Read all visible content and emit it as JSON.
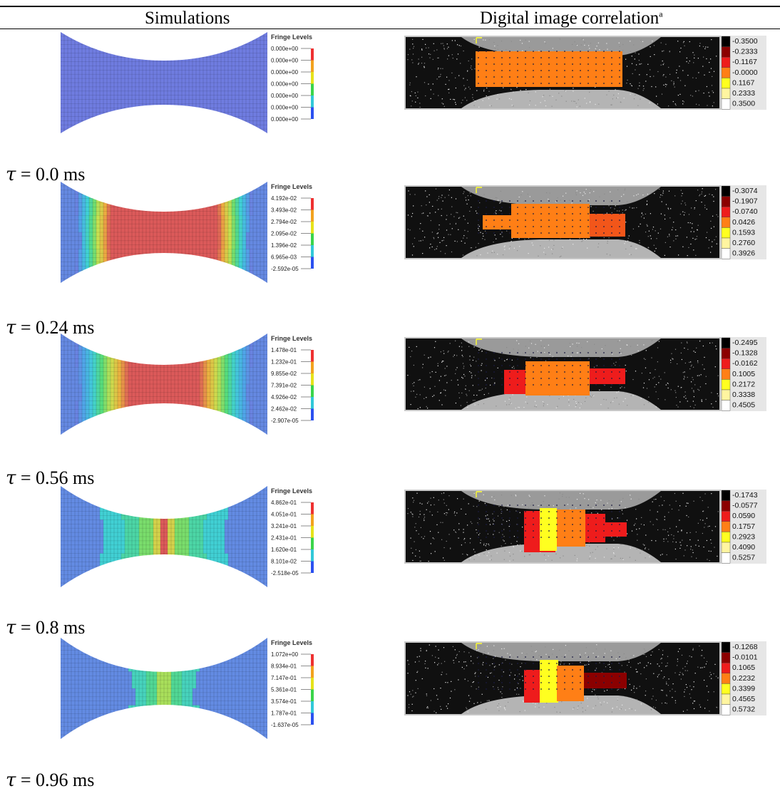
{
  "headers": {
    "simulations": "Simulations",
    "dic": "Digital image correlation",
    "dic_sup": "a"
  },
  "fringe_title": "Fringe Levels",
  "tau_symbol": "τ",
  "rows": [
    {
      "tau": "= 0.0 ms",
      "sim_levels": [
        "0.000e+00",
        "0.000e+00",
        "0.000e+00",
        "0.000e+00",
        "0.000e+00",
        "0.000e+00",
        "0.000e+00"
      ],
      "dic_levels": [
        "-0.3500",
        "-0.2333",
        "-0.1167",
        "-0.0000",
        "0.1167",
        "0.2333",
        "0.3500"
      ]
    },
    {
      "tau": "= 0.24 ms",
      "sim_levels": [
        "4.192e-02",
        "3.493e-02",
        "2.794e-02",
        "2.095e-02",
        "1.396e-02",
        "6.965e-03",
        "-2.592e-05"
      ],
      "dic_levels": [
        "-0.3074",
        "-0.1907",
        "-0.0740",
        "0.0426",
        "0.1593",
        "0.2760",
        "0.3926"
      ]
    },
    {
      "tau": "= 0.56 ms",
      "sim_levels": [
        "1.478e-01",
        "1.232e-01",
        "9.855e-02",
        "7.391e-02",
        "4.926e-02",
        "2.462e-02",
        "-2.907e-05"
      ],
      "dic_levels": [
        "-0.2495",
        "-0.1328",
        "-0.0162",
        "0.1005",
        "0.2172",
        "0.3338",
        "0.4505"
      ]
    },
    {
      "tau": "= 0.8 ms",
      "sim_levels": [
        "4.862e-01",
        "4.051e-01",
        "3.241e-01",
        "2.431e-01",
        "1.620e-01",
        "8.101e-02",
        "-2.518e-05"
      ],
      "dic_levels": [
        "-0.1743",
        "-0.0577",
        "0.0590",
        "0.1757",
        "0.2923",
        "0.4090",
        "0.5257"
      ]
    },
    {
      "tau": "= 0.96 ms",
      "sim_levels": [
        "1.072e+00",
        "8.934e-01",
        "7.147e-01",
        "5.361e-01",
        "3.574e-01",
        "1.787e-01",
        "-1.637e-05"
      ],
      "dic_levels": [
        "-0.1268",
        "-0.0101",
        "0.1065",
        "0.2232",
        "0.3399",
        "0.4565",
        "0.5732"
      ]
    }
  ],
  "colors": {
    "fringe_scale": [
      "#ee3030",
      "#f2a21e",
      "#e6e21a",
      "#3ad44a",
      "#30c8d8",
      "#2a50f0"
    ],
    "dic_scale": [
      "#000000",
      "#8b0000",
      "#ee1c1c",
      "#ff7f16",
      "#ffff20",
      "#fff5a0",
      "#ffffff"
    ],
    "mesh_blue": "#6f7ce0",
    "mesh_red": "#dc5a5a"
  }
}
